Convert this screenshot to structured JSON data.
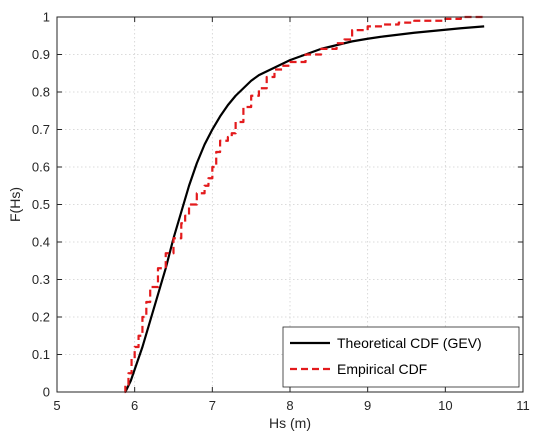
{
  "chart_data": {
    "type": "line",
    "xlabel": "Hs (m)",
    "ylabel": "F(Hs)",
    "xlim": [
      5,
      11
    ],
    "ylim": [
      0,
      1
    ],
    "xticks": [
      5,
      6,
      7,
      8,
      9,
      10,
      11
    ],
    "yticks": [
      0,
      0.1,
      0.2,
      0.3,
      0.4,
      0.5,
      0.6,
      0.7,
      0.8,
      0.9,
      1
    ],
    "xtick_labels": [
      "5",
      "6",
      "7",
      "8",
      "9",
      "10",
      "11"
    ],
    "ytick_labels": [
      "0",
      "0.1",
      "0.2",
      "0.3",
      "0.4",
      "0.5",
      "0.6",
      "0.7",
      "0.8",
      "0.9",
      "1"
    ],
    "grid": true,
    "legend_position": "bottom-right",
    "series": [
      {
        "name": "Theoretical CDF (GEV)",
        "style": "solid",
        "color": "#000000",
        "x": [
          5.88,
          5.95,
          6.0,
          6.1,
          6.2,
          6.3,
          6.4,
          6.5,
          6.6,
          6.7,
          6.8,
          6.9,
          7.0,
          7.1,
          7.2,
          7.3,
          7.4,
          7.5,
          7.6,
          7.7,
          7.8,
          7.9,
          8.0,
          8.2,
          8.4,
          8.6,
          8.8,
          9.0,
          9.2,
          9.4,
          9.6,
          9.8,
          10.0,
          10.2,
          10.5
        ],
        "y": [
          0.0,
          0.03,
          0.06,
          0.12,
          0.19,
          0.26,
          0.33,
          0.41,
          0.48,
          0.55,
          0.61,
          0.66,
          0.7,
          0.735,
          0.765,
          0.79,
          0.81,
          0.83,
          0.845,
          0.855,
          0.865,
          0.875,
          0.885,
          0.9,
          0.915,
          0.925,
          0.935,
          0.942,
          0.948,
          0.953,
          0.958,
          0.962,
          0.966,
          0.97,
          0.975
        ]
      },
      {
        "name": "Empirical CDF",
        "style": "dashed",
        "color": "#e31a1c",
        "x": [
          5.87,
          5.88,
          5.92,
          5.96,
          6.0,
          6.05,
          6.1,
          6.15,
          6.2,
          6.3,
          6.4,
          6.5,
          6.6,
          6.65,
          6.7,
          6.8,
          6.9,
          6.95,
          7.0,
          7.05,
          7.1,
          7.2,
          7.25,
          7.3,
          7.4,
          7.5,
          7.6,
          7.7,
          7.8,
          7.9,
          8.0,
          8.2,
          8.4,
          8.6,
          8.7,
          8.8,
          9.0,
          9.2,
          9.4,
          9.6,
          9.8,
          10.0,
          10.2,
          10.5
        ],
        "y": [
          0.0,
          0.02,
          0.05,
          0.09,
          0.12,
          0.15,
          0.2,
          0.24,
          0.28,
          0.33,
          0.37,
          0.41,
          0.45,
          0.47,
          0.5,
          0.53,
          0.55,
          0.57,
          0.6,
          0.64,
          0.67,
          0.68,
          0.69,
          0.72,
          0.76,
          0.79,
          0.81,
          0.84,
          0.86,
          0.87,
          0.88,
          0.9,
          0.915,
          0.93,
          0.94,
          0.965,
          0.975,
          0.98,
          0.985,
          0.99,
          0.99,
          0.995,
          1.0,
          1.0
        ]
      }
    ]
  }
}
